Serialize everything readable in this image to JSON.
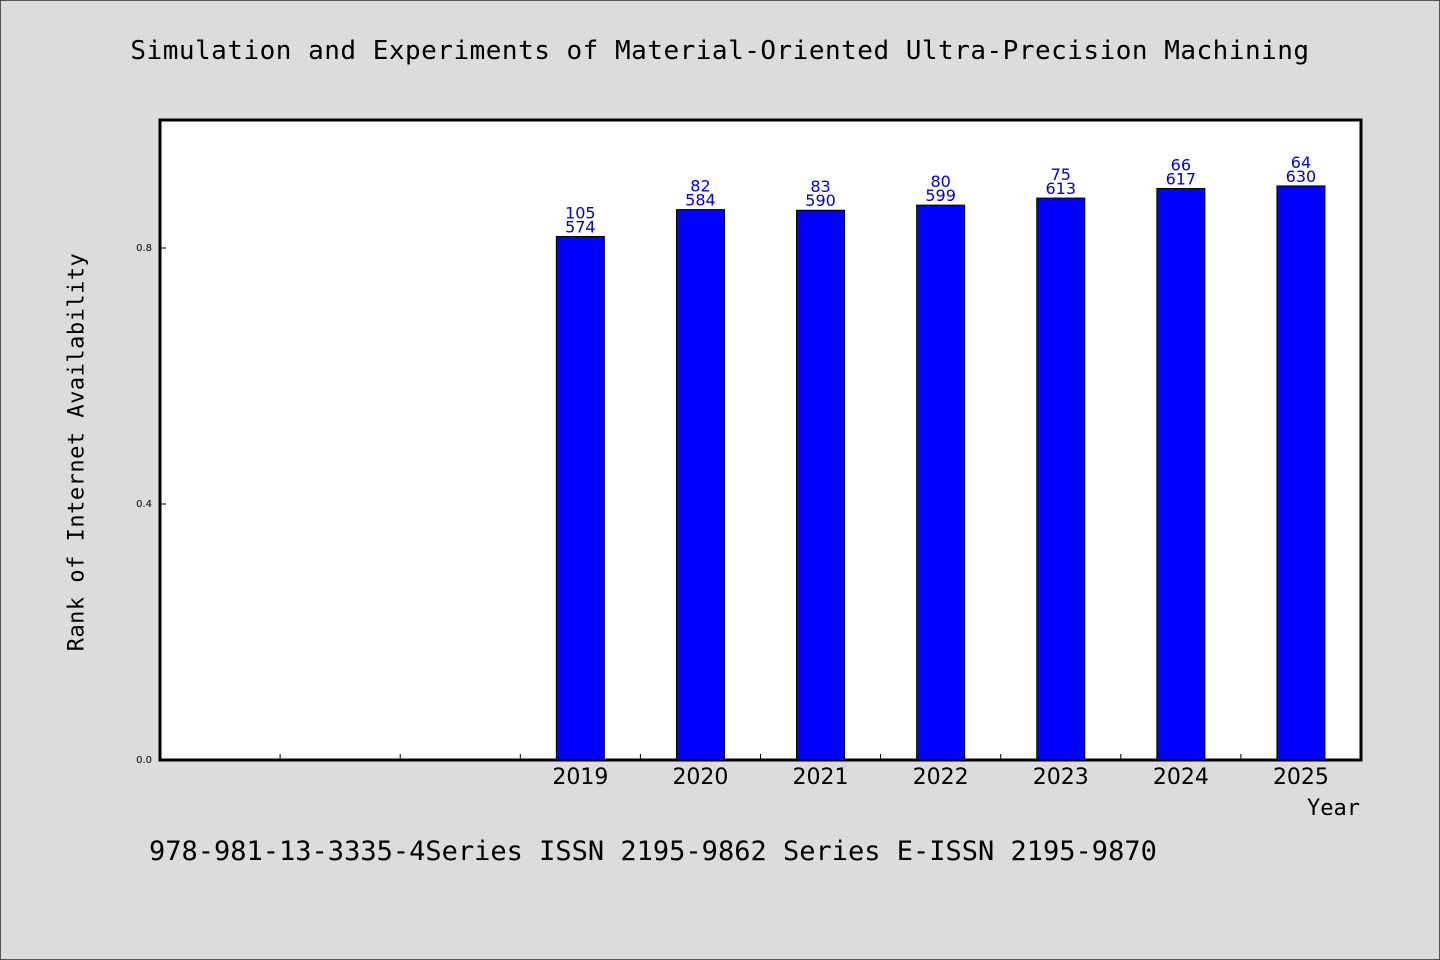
{
  "page": {
    "footer_text": "978-981-13-3335-4Series ISSN 2195-9862 Series E-ISSN 2195-9870"
  },
  "colors": {
    "background": "#dcdcdc",
    "plot_area": "#ffffff",
    "bar_fill": "#0000ff",
    "label_color": "#0000cc",
    "axis": "#000000"
  },
  "chart_data": {
    "type": "bar",
    "title": "Simulation and Experiments of Material-Oriented Ultra-Precision Machining",
    "xlabel": "Year",
    "ylabel": "Rank of Internet Availability",
    "categories": [
      "",
      "",
      "",
      "2019",
      "2020",
      "2021",
      "2022",
      "2023",
      "2024",
      "2025"
    ],
    "values": [
      null,
      null,
      null,
      0.818,
      0.86,
      0.859,
      0.867,
      0.878,
      0.893,
      0.897
    ],
    "bar_labels": [
      null,
      null,
      null,
      [
        "105",
        "574"
      ],
      [
        "82",
        "584"
      ],
      [
        "83",
        "590"
      ],
      [
        "80",
        "599"
      ],
      [
        "75",
        "613"
      ],
      [
        "66",
        "617"
      ],
      [
        "64",
        "630"
      ]
    ],
    "ylim": [
      0,
      1.0
    ],
    "yticks": [
      0.0,
      0.4,
      0.8
    ],
    "ytick_labels": [
      "0.0",
      "0.4",
      "0.8"
    ],
    "grid": false,
    "legend": null
  }
}
